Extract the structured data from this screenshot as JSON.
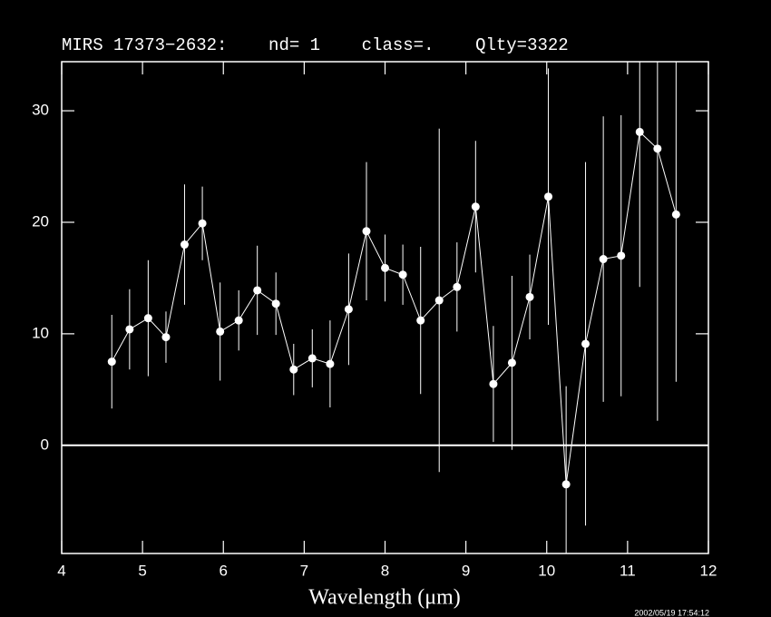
{
  "chart_data": {
    "type": "errorbar",
    "title": "MIRS 17373−2632:    nd= 1    class=.    Qlty=3322",
    "x_label": "Wavelength (μm)",
    "timestamp": "2002/05/19 17:54:12",
    "xlim": [
      4,
      12
    ],
    "xticks": [
      4,
      5,
      6,
      7,
      8,
      9,
      10,
      11,
      12
    ],
    "ylim": [
      -9.7,
      34.4
    ],
    "yticks": [
      0,
      10,
      20,
      30
    ],
    "hline": 0,
    "series": [
      {
        "color": "#ffffff",
        "x": [
          4.62,
          4.84,
          5.07,
          5.29,
          5.52,
          5.74,
          5.96,
          6.19,
          6.42,
          6.65,
          6.87,
          7.1,
          7.32,
          7.55,
          7.77,
          8.0,
          8.22,
          8.44,
          8.67,
          8.89,
          9.12,
          9.34,
          9.57,
          9.79,
          10.02,
          10.24,
          10.48,
          10.7,
          10.92,
          11.15,
          11.37,
          11.6
        ],
        "values": [
          7.5,
          10.4,
          11.4,
          9.7,
          18.0,
          19.9,
          10.2,
          11.2,
          13.9,
          12.7,
          6.8,
          7.8,
          7.3,
          12.2,
          19.2,
          15.9,
          15.3,
          11.2,
          13.0,
          14.2,
          21.4,
          5.5,
          7.4,
          13.3,
          22.3,
          -3.5,
          9.1,
          16.7,
          17.0,
          28.1,
          26.6,
          20.7
        ],
        "errors": [
          4.2,
          3.6,
          5.2,
          2.3,
          5.4,
          3.3,
          4.4,
          2.7,
          4.0,
          2.8,
          2.3,
          2.6,
          3.9,
          5.0,
          6.2,
          3.0,
          2.7,
          6.6,
          15.4,
          4.0,
          5.9,
          5.2,
          7.8,
          3.8,
          11.5,
          8.8,
          16.3,
          12.8,
          12.6,
          13.9,
          24.4,
          15.0
        ]
      }
    ]
  }
}
